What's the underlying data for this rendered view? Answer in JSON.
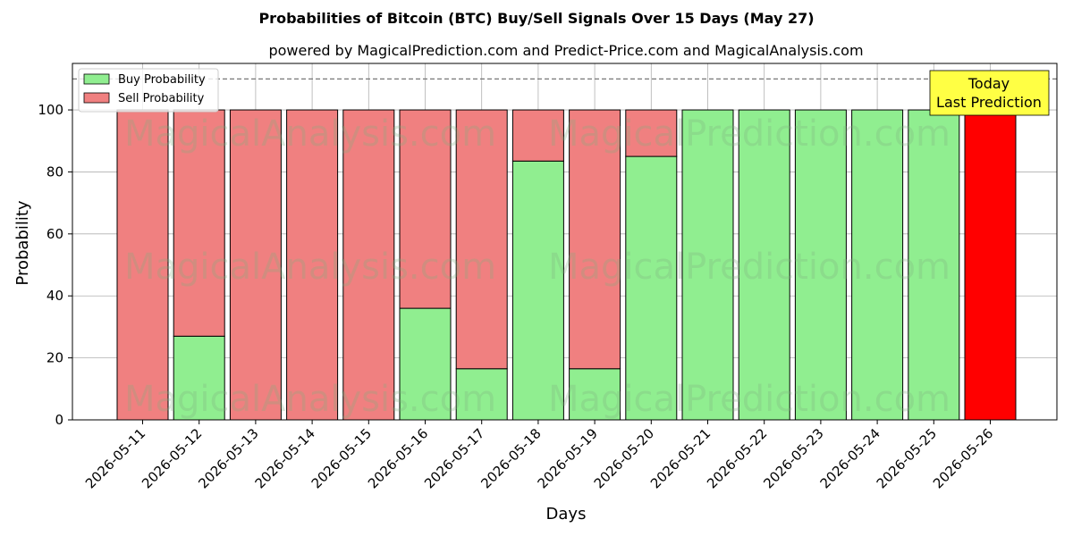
{
  "chart_data": {
    "type": "bar",
    "stacked": true,
    "title": "Probabilities of Bitcoin (BTC) Buy/Sell Signals Over 15 Days (May 27)",
    "subtitle": "powered by MagicalPrediction.com and Predict-Price.com and MagicalAnalysis.com",
    "xlabel": "Days",
    "ylabel": "Probability",
    "ylim": [
      0,
      115
    ],
    "yticks": [
      0,
      20,
      40,
      60,
      80,
      100
    ],
    "grid": true,
    "legend_position": "top-left",
    "reference_line": 110,
    "categories": [
      "2026-05-11",
      "2026-05-12",
      "2026-05-13",
      "2026-05-14",
      "2026-05-15",
      "2026-05-16",
      "2026-05-17",
      "2026-05-18",
      "2026-05-19",
      "2026-05-20",
      "2026-05-21",
      "2026-05-22",
      "2026-05-23",
      "2026-05-24",
      "2026-05-25",
      "2026-05-26"
    ],
    "series": [
      {
        "name": "Buy Probability",
        "color": "#90ee90",
        "values": [
          0,
          27,
          0,
          0,
          0,
          36,
          16.5,
          83.5,
          16.5,
          85,
          100,
          100,
          100,
          100,
          100,
          null
        ]
      },
      {
        "name": "Sell Probability",
        "color": "#f08080",
        "values": [
          100,
          73,
          100,
          100,
          100,
          64,
          83.5,
          16.5,
          83.5,
          15,
          0,
          0,
          0,
          0,
          0,
          null
        ]
      }
    ],
    "highlight": {
      "category": "2026-05-26",
      "value": 100,
      "color": "#ff0000"
    },
    "annotation": {
      "lines": [
        "Today",
        "Last Prediction"
      ],
      "background": "#ffff44"
    },
    "watermarks": [
      "MagicalAnalysis.com",
      "MagicalPrediction.com"
    ]
  }
}
